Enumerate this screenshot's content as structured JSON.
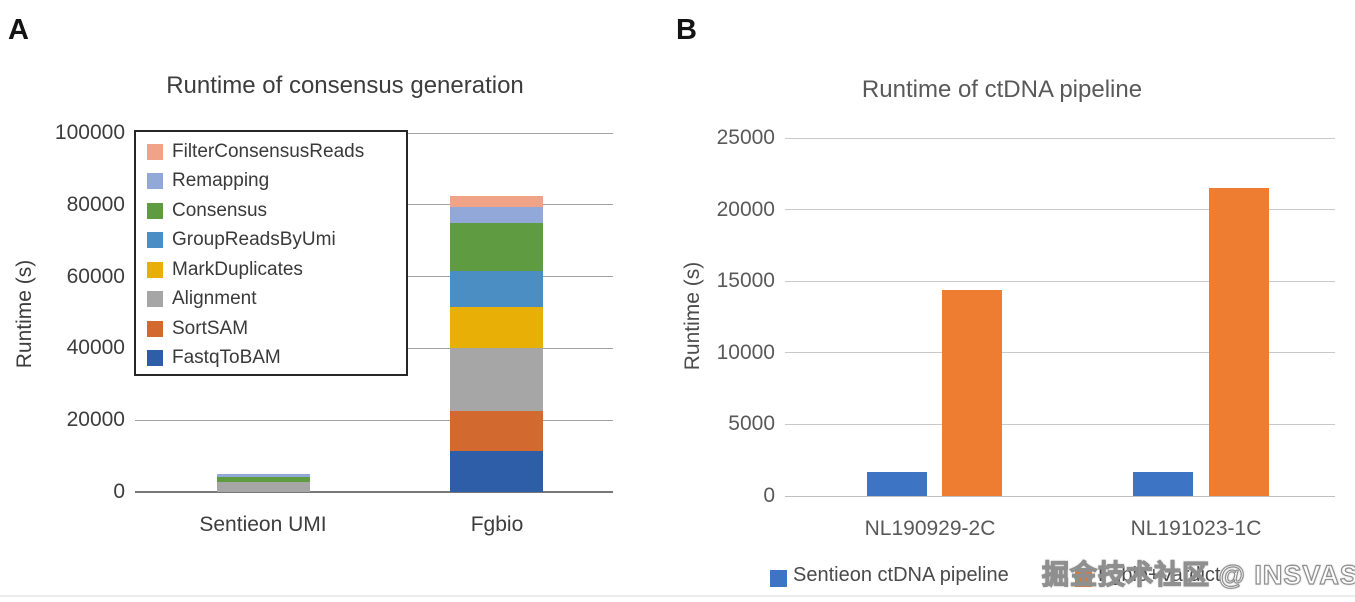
{
  "page": {
    "watermark": "掘金技术社区 @ INSVAST"
  },
  "panels": {
    "a": {
      "label": "A"
    },
    "b": {
      "label": "B"
    }
  },
  "chart_data": [
    {
      "type": "bar",
      "subtype": "stacked",
      "title": "Runtime of consensus generation",
      "xlabel": "",
      "ylabel": "Runtime (s)",
      "ylim": [
        0,
        100000
      ],
      "yticks": [
        0,
        20000,
        40000,
        60000,
        80000,
        100000
      ],
      "grid": true,
      "categories": [
        "Sentieon UMI",
        "Fgbio"
      ],
      "series": [
        {
          "name": "FastqToBAM",
          "color": "#2E5EA8",
          "values": [
            0,
            11500
          ]
        },
        {
          "name": "SortSAM",
          "color": "#D2692E",
          "values": [
            0,
            11000
          ]
        },
        {
          "name": "Alignment",
          "color": "#A6A6A6",
          "values": [
            2900,
            17500
          ]
        },
        {
          "name": "MarkDuplicates",
          "color": "#E8B007",
          "values": [
            0,
            11500
          ]
        },
        {
          "name": "GroupReadsByUmi",
          "color": "#4A8EC3",
          "values": [
            0,
            10000
          ]
        },
        {
          "name": "Consensus",
          "color": "#5F9C41",
          "values": [
            1400,
            13500
          ]
        },
        {
          "name": "Remapping",
          "color": "#92A8D9",
          "values": [
            700,
            4500
          ]
        },
        {
          "name": "FilterConsensusReads",
          "color": "#F1A388",
          "values": [
            0,
            3000
          ]
        }
      ],
      "totals": [
        5000,
        82500
      ],
      "legend_position": "upper-left-inside-box",
      "legend_order_top_to_bottom": [
        "FilterConsensusReads",
        "Remapping",
        "Consensus",
        "GroupReadsByUmi",
        "MarkDuplicates",
        "Alignment",
        "SortSAM",
        "FastqToBAM"
      ]
    },
    {
      "type": "bar",
      "subtype": "grouped",
      "title": "Runtime of ctDNA pipeline",
      "xlabel": "",
      "ylabel": "Runtime (s)",
      "ylim": [
        0,
        25000
      ],
      "yticks": [
        0,
        5000,
        10000,
        15000,
        20000,
        25000
      ],
      "grid": true,
      "categories": [
        "NL190929-2C",
        "NL191023-1C"
      ],
      "series": [
        {
          "name": "Sentieon ctDNA pipeline",
          "color": "#3E74C4",
          "values": [
            1700,
            1700
          ]
        },
        {
          "name": "Fgbio+Vardict",
          "color": "#EE7D31",
          "values": [
            14400,
            21500
          ]
        }
      ],
      "legend_position": "bottom"
    }
  ],
  "colors": {
    "panel_a_text": "#3d3d3d",
    "panel_b_text": "#595959",
    "grid_a": "#a2a2a2",
    "grid_a_zero": "#787878",
    "grid_b": "#c9c9c9"
  }
}
